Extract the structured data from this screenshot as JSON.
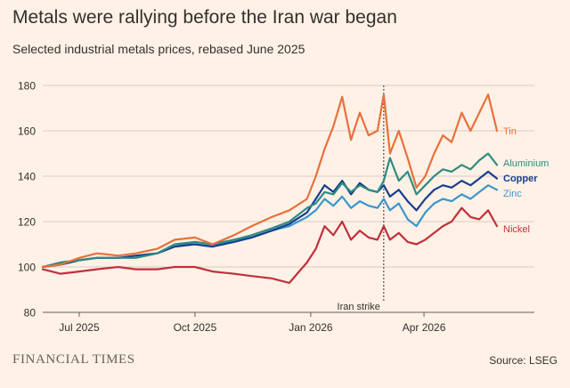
{
  "title": "Metals were rallying before the Iran war began",
  "subtitle": "Selected industrial metals prices, rebased June 2025",
  "brand": "FINANCIAL TIMES",
  "source": "Source: LSEG",
  "colors": {
    "background": "#fff1e5",
    "grid": "#d8ccc0",
    "Tin": "#e8703d",
    "Aluminium": "#2e8b82",
    "Copper": "#153f8f",
    "Zinc": "#3a96cc",
    "Nickel": "#c0303d"
  },
  "chart_data": {
    "type": "line",
    "title": "Metals were rallying before the Iran war began",
    "subtitle": "Selected industrial metals prices, rebased June 2025",
    "x_axis": {
      "type": "date",
      "range": [
        "2025-06-02",
        "2026-05-29"
      ],
      "ticks": [
        "2025-07-01",
        "2025-10-01",
        "2026-01-01",
        "2026-04-01"
      ],
      "tick_labels": [
        "Jul 2025",
        "Oct 2025",
        "Jan 2026",
        "Apr 2026"
      ]
    },
    "y_axis": {
      "range": [
        80,
        180
      ],
      "ticks": [
        80,
        100,
        120,
        140,
        160,
        180
      ]
    },
    "grid": "horizontal",
    "legend": "inline labels at line ends",
    "annotation": {
      "label": "Iran strike",
      "date": "2026-02-28"
    },
    "series": [
      {
        "name": "Tin",
        "points": [
          [
            "2025-06-02",
            100
          ],
          [
            "2025-06-16",
            101
          ],
          [
            "2025-07-01",
            104
          ],
          [
            "2025-07-15",
            106
          ],
          [
            "2025-08-01",
            105
          ],
          [
            "2025-08-15",
            106
          ],
          [
            "2025-09-01",
            108
          ],
          [
            "2025-09-15",
            112
          ],
          [
            "2025-10-01",
            113
          ],
          [
            "2025-10-15",
            110
          ],
          [
            "2025-11-01",
            114
          ],
          [
            "2025-11-15",
            118
          ],
          [
            "2025-12-01",
            122
          ],
          [
            "2025-12-15",
            125
          ],
          [
            "2025-12-29",
            130
          ],
          [
            "2026-01-05",
            140
          ],
          [
            "2026-01-12",
            152
          ],
          [
            "2026-01-19",
            162
          ],
          [
            "2026-01-26",
            175
          ],
          [
            "2026-02-02",
            156
          ],
          [
            "2026-02-09",
            168
          ],
          [
            "2026-02-16",
            158
          ],
          [
            "2026-02-23",
            160
          ],
          [
            "2026-02-28",
            176
          ],
          [
            "2026-03-05",
            150
          ],
          [
            "2026-03-12",
            160
          ],
          [
            "2026-03-19",
            148
          ],
          [
            "2026-03-26",
            135
          ],
          [
            "2026-04-02",
            140
          ],
          [
            "2026-04-09",
            150
          ],
          [
            "2026-04-16",
            158
          ],
          [
            "2026-04-23",
            155
          ],
          [
            "2026-05-01",
            168
          ],
          [
            "2026-05-08",
            160
          ],
          [
            "2026-05-15",
            168
          ],
          [
            "2026-05-22",
            176
          ],
          [
            "2026-05-29",
            160
          ]
        ]
      },
      {
        "name": "Aluminium",
        "points": [
          [
            "2025-06-02",
            100
          ],
          [
            "2025-06-16",
            102
          ],
          [
            "2025-07-01",
            103
          ],
          [
            "2025-07-15",
            104
          ],
          [
            "2025-08-01",
            104
          ],
          [
            "2025-08-15",
            104
          ],
          [
            "2025-09-01",
            106
          ],
          [
            "2025-09-15",
            110
          ],
          [
            "2025-10-01",
            111
          ],
          [
            "2025-10-15",
            110
          ],
          [
            "2025-11-01",
            112
          ],
          [
            "2025-11-15",
            114
          ],
          [
            "2025-12-01",
            117
          ],
          [
            "2025-12-15",
            120
          ],
          [
            "2025-12-29",
            126
          ],
          [
            "2026-01-05",
            128
          ],
          [
            "2026-01-12",
            133
          ],
          [
            "2026-01-19",
            132
          ],
          [
            "2026-01-26",
            137
          ],
          [
            "2026-02-02",
            133
          ],
          [
            "2026-02-09",
            136
          ],
          [
            "2026-02-16",
            134
          ],
          [
            "2026-02-23",
            133
          ],
          [
            "2026-02-28",
            138
          ],
          [
            "2026-03-05",
            148
          ],
          [
            "2026-03-12",
            138
          ],
          [
            "2026-03-19",
            142
          ],
          [
            "2026-03-26",
            132
          ],
          [
            "2026-04-02",
            136
          ],
          [
            "2026-04-09",
            140
          ],
          [
            "2026-04-16",
            143
          ],
          [
            "2026-04-23",
            142
          ],
          [
            "2026-05-01",
            145
          ],
          [
            "2026-05-08",
            143
          ],
          [
            "2026-05-15",
            147
          ],
          [
            "2026-05-22",
            150
          ],
          [
            "2026-05-29",
            145
          ]
        ]
      },
      {
        "name": "Copper",
        "points": [
          [
            "2025-06-02",
            100
          ],
          [
            "2025-06-16",
            101
          ],
          [
            "2025-07-01",
            103
          ],
          [
            "2025-07-15",
            104
          ],
          [
            "2025-08-01",
            104
          ],
          [
            "2025-08-15",
            105
          ],
          [
            "2025-09-01",
            106
          ],
          [
            "2025-09-15",
            109
          ],
          [
            "2025-10-01",
            110
          ],
          [
            "2025-10-15",
            109
          ],
          [
            "2025-11-01",
            111
          ],
          [
            "2025-11-15",
            113
          ],
          [
            "2025-12-01",
            116
          ],
          [
            "2025-12-15",
            119
          ],
          [
            "2025-12-29",
            124
          ],
          [
            "2026-01-05",
            130
          ],
          [
            "2026-01-12",
            136
          ],
          [
            "2026-01-19",
            133
          ],
          [
            "2026-01-26",
            138
          ],
          [
            "2026-02-02",
            132
          ],
          [
            "2026-02-09",
            137
          ],
          [
            "2026-02-16",
            134
          ],
          [
            "2026-02-23",
            133
          ],
          [
            "2026-02-28",
            136
          ],
          [
            "2026-03-05",
            131
          ],
          [
            "2026-03-12",
            134
          ],
          [
            "2026-03-19",
            129
          ],
          [
            "2026-03-26",
            125
          ],
          [
            "2026-04-02",
            130
          ],
          [
            "2026-04-09",
            134
          ],
          [
            "2026-04-16",
            136
          ],
          [
            "2026-04-23",
            135
          ],
          [
            "2026-05-01",
            138
          ],
          [
            "2026-05-08",
            136
          ],
          [
            "2026-05-15",
            139
          ],
          [
            "2026-05-22",
            142
          ],
          [
            "2026-05-29",
            139
          ]
        ]
      },
      {
        "name": "Zinc",
        "points": [
          [
            "2025-06-02",
            100
          ],
          [
            "2025-06-16",
            101
          ],
          [
            "2025-07-01",
            103
          ],
          [
            "2025-07-15",
            104
          ],
          [
            "2025-08-01",
            104
          ],
          [
            "2025-08-15",
            105
          ],
          [
            "2025-09-01",
            106
          ],
          [
            "2025-09-15",
            110
          ],
          [
            "2025-10-01",
            110
          ],
          [
            "2025-10-15",
            109
          ],
          [
            "2025-11-01",
            112
          ],
          [
            "2025-11-15",
            113
          ],
          [
            "2025-12-01",
            116
          ],
          [
            "2025-12-15",
            118
          ],
          [
            "2025-12-29",
            122
          ],
          [
            "2026-01-05",
            125
          ],
          [
            "2026-01-12",
            130
          ],
          [
            "2026-01-19",
            127
          ],
          [
            "2026-01-26",
            131
          ],
          [
            "2026-02-02",
            126
          ],
          [
            "2026-02-09",
            129
          ],
          [
            "2026-02-16",
            127
          ],
          [
            "2026-02-23",
            126
          ],
          [
            "2026-02-28",
            130
          ],
          [
            "2026-03-05",
            125
          ],
          [
            "2026-03-12",
            128
          ],
          [
            "2026-03-19",
            121
          ],
          [
            "2026-03-26",
            118
          ],
          [
            "2026-04-02",
            124
          ],
          [
            "2026-04-09",
            128
          ],
          [
            "2026-04-16",
            130
          ],
          [
            "2026-04-23",
            129
          ],
          [
            "2026-05-01",
            132
          ],
          [
            "2026-05-08",
            130
          ],
          [
            "2026-05-15",
            133
          ],
          [
            "2026-05-22",
            136
          ],
          [
            "2026-05-29",
            134
          ]
        ]
      },
      {
        "name": "Nickel",
        "points": [
          [
            "2025-06-02",
            99
          ],
          [
            "2025-06-16",
            97
          ],
          [
            "2025-07-01",
            98
          ],
          [
            "2025-07-15",
            99
          ],
          [
            "2025-08-01",
            100
          ],
          [
            "2025-08-15",
            99
          ],
          [
            "2025-09-01",
            99
          ],
          [
            "2025-09-15",
            100
          ],
          [
            "2025-10-01",
            100
          ],
          [
            "2025-10-15",
            98
          ],
          [
            "2025-11-01",
            97
          ],
          [
            "2025-11-15",
            96
          ],
          [
            "2025-12-01",
            95
          ],
          [
            "2025-12-15",
            93
          ],
          [
            "2025-12-29",
            102
          ],
          [
            "2026-01-05",
            108
          ],
          [
            "2026-01-12",
            118
          ],
          [
            "2026-01-19",
            114
          ],
          [
            "2026-01-26",
            120
          ],
          [
            "2026-02-02",
            112
          ],
          [
            "2026-02-09",
            116
          ],
          [
            "2026-02-16",
            113
          ],
          [
            "2026-02-23",
            112
          ],
          [
            "2026-02-28",
            118
          ],
          [
            "2026-03-05",
            112
          ],
          [
            "2026-03-12",
            115
          ],
          [
            "2026-03-19",
            111
          ],
          [
            "2026-03-26",
            110
          ],
          [
            "2026-04-02",
            112
          ],
          [
            "2026-04-09",
            115
          ],
          [
            "2026-04-16",
            118
          ],
          [
            "2026-04-23",
            120
          ],
          [
            "2026-05-01",
            126
          ],
          [
            "2026-05-08",
            122
          ],
          [
            "2026-05-15",
            121
          ],
          [
            "2026-05-22",
            125
          ],
          [
            "2026-05-29",
            118
          ]
        ]
      }
    ]
  }
}
